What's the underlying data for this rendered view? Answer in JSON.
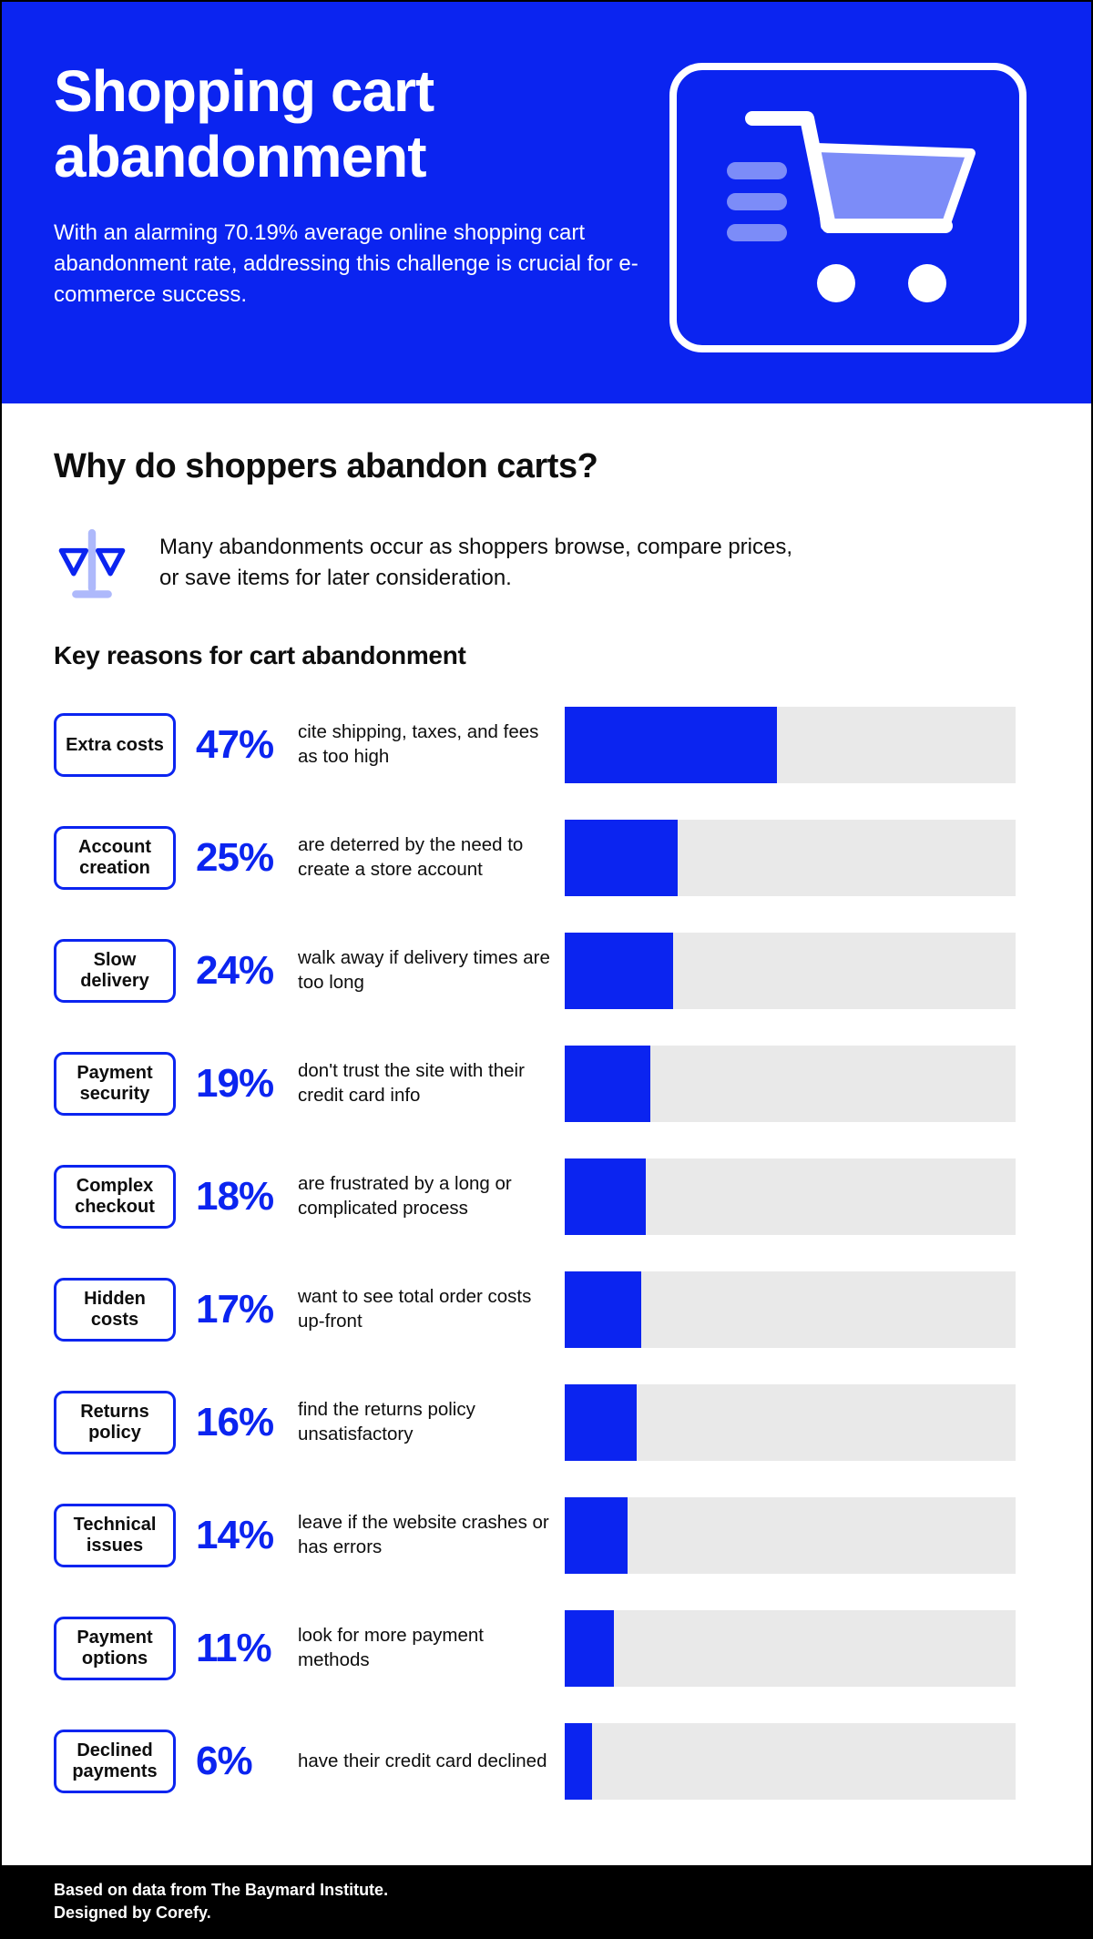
{
  "header": {
    "title": "Shopping cart abandonment",
    "subtitle": "With an alarming 70.19% average online shopping cart abandonment rate, addressing this challenge is crucial for e-commerce success."
  },
  "body": {
    "heading": "Why do shoppers abandon carts?",
    "intro": "Many abandonments occur as shoppers browse, compare prices, or save items for later consideration.",
    "subheading": "Key reasons for cart abandonment"
  },
  "icons": {
    "cart": "shopping-cart-icon",
    "scales": "balance-scale-icon"
  },
  "rows": [
    {
      "label": "Extra costs",
      "percent": "47%",
      "description": "cite shipping, taxes, and fees as too high"
    },
    {
      "label": "Account creation",
      "percent": "25%",
      "description": "are deterred by the need to create a store account"
    },
    {
      "label": "Slow delivery",
      "percent": "24%",
      "description": "walk away if delivery times are too long"
    },
    {
      "label": "Payment security",
      "percent": "19%",
      "description": "don't trust the site with their credit card info"
    },
    {
      "label": "Complex checkout",
      "percent": "18%",
      "description": "are frustrated by a long or complicated process"
    },
    {
      "label": "Hidden costs",
      "percent": "17%",
      "description": "want to see total order costs up-front"
    },
    {
      "label": "Returns policy",
      "percent": "16%",
      "description": "find the returns policy unsatisfactory"
    },
    {
      "label": "Technical issues",
      "percent": "14%",
      "description": "leave if the website crashes or has errors"
    },
    {
      "label": "Payment options",
      "percent": "11%",
      "description": "look for more payment methods"
    },
    {
      "label": "Declined payments",
      "percent": "6%",
      "description": "have their credit card declined"
    }
  ],
  "chart_data": {
    "type": "bar",
    "orientation": "horizontal",
    "title": "Key reasons for cart abandonment",
    "categories": [
      "Extra costs",
      "Account creation",
      "Slow delivery",
      "Payment security",
      "Complex checkout",
      "Hidden costs",
      "Returns policy",
      "Technical issues",
      "Payment options",
      "Declined payments"
    ],
    "values": [
      47,
      25,
      24,
      19,
      18,
      17,
      16,
      14,
      11,
      6
    ],
    "unit": "%",
    "xlim": [
      0,
      100
    ],
    "bar_color": "#0B24F0",
    "track_color": "#E9E9E9",
    "annotations": [
      "cite shipping, taxes, and fees as too high",
      "are deterred by the need to create a store account",
      "walk away if delivery times are too long",
      "don't trust the site with their credit card info",
      "are frustrated by a long or complicated process",
      "want to see total order costs up-front",
      "find the returns policy unsatisfactory",
      "leave if the website crashes or has errors",
      "look for more payment methods",
      "have their credit card declined"
    ]
  },
  "footer": {
    "line1": "Based on data from The Baymard Institute.",
    "line2": "Designed by Corefy."
  },
  "colors": {
    "primary_blue": "#0B24F0",
    "light_blue": "#7C8CF8",
    "bar_track": "#E9E9E9",
    "footer_bg": "#000000"
  }
}
